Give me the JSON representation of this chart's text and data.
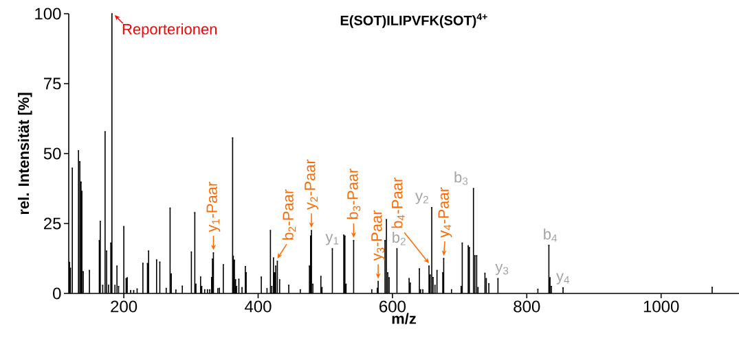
{
  "chart_data": {
    "type": "lollipop",
    "marker": "square",
    "title": "E(SOT)ILIPVFK(SOT)$^{4+}$",
    "xlabel": "m/z",
    "ylabel": "rel. Intensität [%]",
    "x": [
      119.2,
      120.5,
      123.3,
      132.5,
      134.5,
      136.3,
      137.6,
      139.6,
      148.8,
      163.5,
      164.9,
      168.6,
      172.1,
      174.4,
      177.2,
      180.6,
      182.3,
      186.8,
      189.8,
      192.2,
      200.0,
      203.4,
      205.1,
      210.2,
      214.7,
      219.8,
      228.4,
      235.2,
      236.9,
      248.8,
      253.6,
      263.1,
      268.9,
      270.7,
      277.5,
      287.1,
      300.6,
      305.7,
      307.4,
      314.3,
      316.0,
      320.4,
      324.5,
      327.9,
      330.7,
      332.0,
      333.4,
      339.9,
      342.3,
      348.1,
      362.0,
      363.0,
      364.7,
      366.4,
      367.8,
      371.3,
      376.0,
      380.9,
      382.2,
      404.7,
      413.2,
      418.3,
      420.3,
      422.8,
      424.5,
      426.2,
      428.6,
      432.0,
      445.6,
      462.7,
      476.4,
      478.1,
      479.4,
      481.5,
      493.4,
      495.1,
      510.5,
      527.5,
      529.2,
      530.9,
      542.2,
      569.2,
      577.4,
      578.7,
      588.9,
      591.0,
      593.0,
      595.1,
      606.7,
      624.8,
      626.5,
      640.1,
      641.8,
      645.2,
      654.4,
      656.1,
      658.5,
      660.5,
      663.3,
      666.3,
      674.9,
      676.3,
      687.9,
      702.2,
      703.9,
      712.8,
      714.5,
      720.6,
      722.7,
      725.4,
      727.4,
      737.7,
      739.7,
      743.5,
      757.1,
      816.5,
      832.9,
      834.6,
      836.6,
      854.0,
      1076.0
    ],
    "values": [
      11.1,
      9.0,
      44.8,
      51.0,
      47.1,
      39.8,
      36.5,
      7.8,
      8.2,
      18.9,
      25.8,
      2.9,
      57.8,
      15.2,
      2.9,
      18.0,
      100,
      2.9,
      9.8,
      2.5,
      23.9,
      5.3,
      5.6,
      1.0,
      1.0,
      1.6,
      10.8,
      10.7,
      15.2,
      12.0,
      11.2,
      1.8,
      30.5,
      7.0,
      1.2,
      2.6,
      14.8,
      28.9,
      3.3,
      5.9,
      2.5,
      1.3,
      1.3,
      1.3,
      5.7,
      12.3,
      14.5,
      1.7,
      1.8,
      10.3,
      55.6,
      13.3,
      11.9,
      4.9,
      2.5,
      5.1,
      2.1,
      9.6,
      7.4,
      5.9,
      1.7,
      22.5,
      2.5,
      12.7,
      7.4,
      9.8,
      11.5,
      4.9,
      2.9,
      1.3,
      9.8,
      20.5,
      22.5,
      3.3,
      6.1,
      2.1,
      16.0,
      20.9,
      20.5,
      3.3,
      18.9,
      1.3,
      1.8,
      4.3,
      18.9,
      26.4,
      7.4,
      5.6,
      16.0,
      5.3,
      3.7,
      8.8,
      1.3,
      1.3,
      9.8,
      6.6,
      30.7,
      5.7,
      2.9,
      8.2,
      7.4,
      12.5,
      1.3,
      2.5,
      18.0,
      17.0,
      16.4,
      37.5,
      13.5,
      13.5,
      2.1,
      7.2,
      5.3,
      3.5,
      5.3,
      1.5,
      17.2,
      5.6,
      2.5,
      2.0,
      2.2
    ],
    "color": "#000000",
    "xlim": [
      118,
      1116
    ],
    "ylim": [
      0,
      100
    ],
    "xticks": [
      200,
      400,
      600,
      800,
      1000
    ],
    "yticks": [
      0,
      25,
      50,
      75,
      100
    ],
    "annotations": [
      {
        "text": "Reporterionen",
        "x": 182.3,
        "y": 100
      },
      {
        "text": "y$_{1}$-Paar",
        "x": 333.4,
        "y": 14.5
      },
      {
        "text": "b$_{2}$-Paar",
        "x": 428.6,
        "y": 11.5
      },
      {
        "text": "y$_{2}$-Paar",
        "x": 479.4,
        "y": 22.5
      },
      {
        "text": "b$_{3}$-Paar",
        "x": 542.2,
        "y": 18.9
      },
      {
        "text": "y$_{3}$-Paar",
        "x": 578.7,
        "y": 4.3
      },
      {
        "text": "b$_{4}$-Paar",
        "x": 654.4,
        "y": 9.8
      },
      {
        "text": "y$_{4}$-Paar",
        "x": 676.3,
        "y": 12.5
      },
      {
        "text": "y$_{1}$",
        "x": 510.5,
        "y": 16.0
      },
      {
        "text": "b$_{2}$",
        "x": 606.7,
        "y": 16.0
      },
      {
        "text": "y$_{2}$",
        "x": 658.5,
        "y": 30.7
      },
      {
        "text": "b$_{3}$",
        "x": 720.6,
        "y": 37.5
      },
      {
        "text": "b$_{4}$",
        "x": 832.9,
        "y": 17.2
      },
      {
        "text": "y$_{3}$",
        "x": 757.1,
        "y": 5.3
      },
      {
        "text": "y$_{4}$",
        "x": 854.0,
        "y": 2.0
      }
    ]
  }
}
